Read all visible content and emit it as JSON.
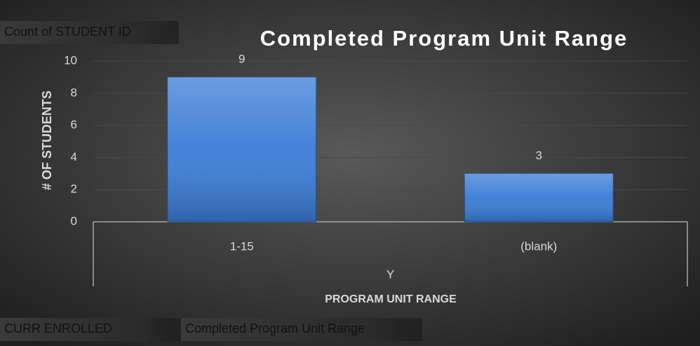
{
  "chart_data": {
    "type": "bar",
    "title": "Completed Program Unit Range",
    "ylabel": "# OF STUDENTS",
    "xlabel": "PROGRAM UNIT RANGE",
    "outer_category": "Y",
    "categories": [
      "1-15",
      "(blank)"
    ],
    "values": [
      9,
      3
    ],
    "color": "#3a7bd5",
    "ylim": [
      0,
      10
    ],
    "yticks": [
      0,
      2,
      4,
      6,
      8,
      10
    ],
    "grid": true,
    "pivot_buttons": {
      "value_field": "Count of STUDENT ID",
      "axis_fields": [
        "CURR ENROLLED",
        "Completed Program Unit Range"
      ]
    }
  }
}
